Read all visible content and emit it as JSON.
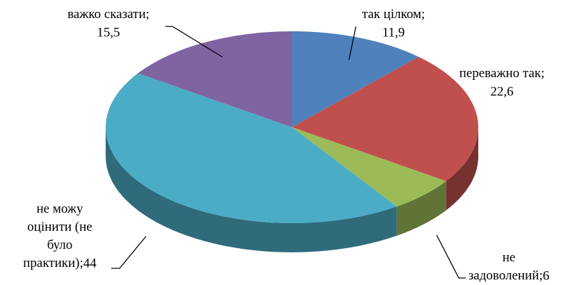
{
  "chart_data": {
    "type": "pie3d",
    "categories": [
      "так цілком;",
      "переважно так;",
      "не задоволений;",
      "не можу оцінити (не було практики);",
      "важко сказати;"
    ],
    "values": [
      11.9,
      22.6,
      6,
      44,
      15.5
    ],
    "value_labels": [
      "11,9",
      "22,6",
      "6",
      "44",
      "15,5"
    ],
    "colors": [
      "#4f81bd",
      "#c0504d",
      "#9bbb59",
      "#4bacc6",
      "#8064a2"
    ]
  }
}
